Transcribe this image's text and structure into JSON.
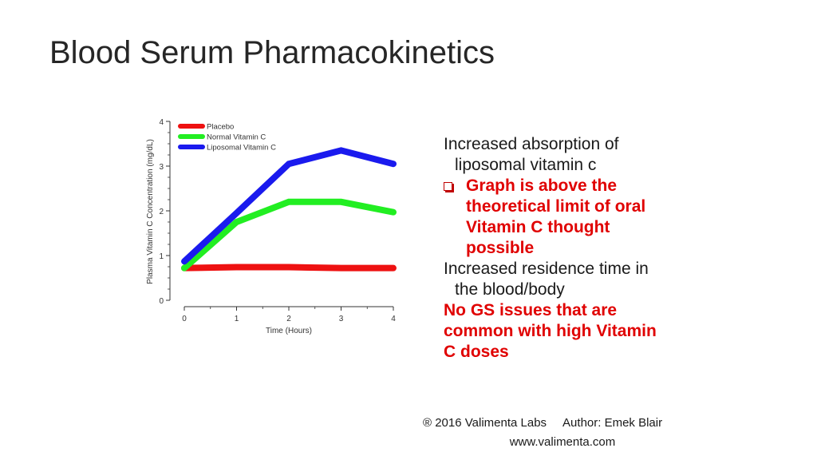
{
  "slide": {
    "title": "Blood Serum Pharmacokinetics"
  },
  "bullets": {
    "item1_line1": "Increased absorption of",
    "item1_line2": "liposomal vitamin c",
    "sub1_line1": "Graph is above the",
    "sub1_line2": "theoretical limit of oral",
    "sub1_line3": "Vitamin C thought",
    "sub1_line4": "possible",
    "item2_line1": "Increased residence time in",
    "item2_line2": "the blood/body",
    "item3_line1": "No GS issues that are",
    "item3_line2": "common with high Vitamin",
    "item3_line3": "C doses",
    "accent_color": "#e00000"
  },
  "footer": {
    "copyright": "® 2016 Valimenta Labs     Author: Emek Blair",
    "website": "www.valimenta.com"
  },
  "chart_data": {
    "type": "line",
    "title": "",
    "xlabel": "Time (Hours)",
    "ylabel": "Plasma Vitamin C Concentration (mg/dL)",
    "x": [
      0,
      1,
      2,
      3,
      4
    ],
    "xlim": [
      0,
      4
    ],
    "ylim": [
      0,
      4
    ],
    "x_ticks": [
      "0",
      "1",
      "2",
      "3",
      "4"
    ],
    "y_ticks": [
      "0",
      "1",
      "2",
      "3",
      "4"
    ],
    "legend_position": "top-left",
    "grid": false,
    "series": [
      {
        "name": "Placebo",
        "color": "#ee1111",
        "values": [
          0.72,
          0.74,
          0.74,
          0.72,
          0.72
        ]
      },
      {
        "name": "Normal Vitamin C",
        "color": "#22ee22",
        "values": [
          0.72,
          1.75,
          2.2,
          2.2,
          1.97
        ]
      },
      {
        "name": "Liposomal Vitamin C",
        "color": "#1a1aee",
        "values": [
          0.87,
          1.95,
          3.05,
          3.35,
          3.05
        ]
      }
    ]
  }
}
